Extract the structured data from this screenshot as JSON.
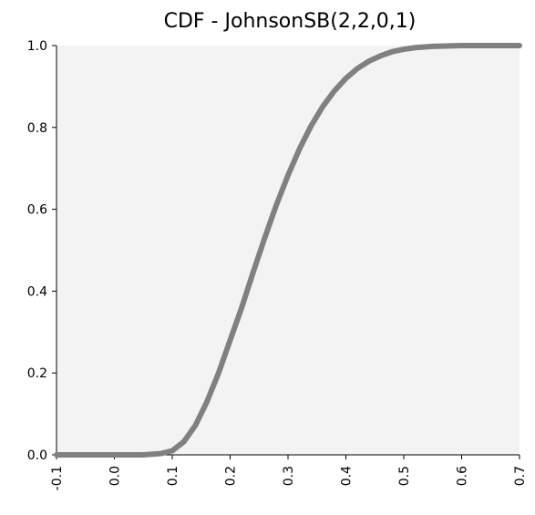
{
  "chart_data": {
    "type": "line",
    "title": "CDF - JohnsonSB(2,2,0,1)",
    "xlabel": "",
    "ylabel": "",
    "xlim": [
      -0.1,
      0.7
    ],
    "ylim": [
      0.0,
      1.0
    ],
    "x_ticks": [
      "-0.1",
      "0.0",
      "0.1",
      "0.2",
      "0.3",
      "0.4",
      "0.5",
      "0.6",
      "0.7"
    ],
    "y_ticks": [
      "0.0",
      "0.2",
      "0.4",
      "0.6",
      "0.8",
      "1.0"
    ],
    "grid": false,
    "series": [
      {
        "color": "#808080",
        "x": [
          -0.1,
          -0.05,
          0.0,
          0.05,
          0.08,
          0.1,
          0.12,
          0.14,
          0.16,
          0.18,
          0.2,
          0.22,
          0.24,
          0.26,
          0.28,
          0.3,
          0.32,
          0.34,
          0.36,
          0.38,
          0.4,
          0.42,
          0.44,
          0.46,
          0.48,
          0.5,
          0.52,
          0.55,
          0.6,
          0.65,
          0.7
        ],
        "y": [
          0.0,
          0.0,
          0.0,
          0.0,
          0.003,
          0.01,
          0.032,
          0.072,
          0.13,
          0.2,
          0.28,
          0.36,
          0.447,
          0.531,
          0.611,
          0.683,
          0.748,
          0.804,
          0.851,
          0.889,
          0.92,
          0.944,
          0.962,
          0.975,
          0.985,
          0.991,
          0.995,
          0.998,
          1.0,
          1.0,
          1.0
        ]
      }
    ]
  },
  "colors": {
    "plot_background": "#f3f3f3",
    "axis": "#000000",
    "line": "#808080"
  }
}
